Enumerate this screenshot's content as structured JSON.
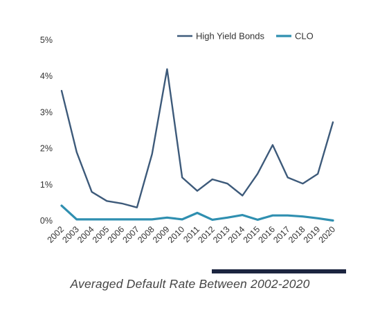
{
  "chart_data": {
    "type": "line",
    "title": "",
    "xlabel": "",
    "ylabel": "",
    "ylim": [
      0,
      5
    ],
    "y_tick_labels": [
      "0%",
      "1%",
      "2%",
      "3%",
      "4%",
      "5%"
    ],
    "categories": [
      "2002",
      "2003",
      "2004",
      "2005",
      "2006",
      "2007",
      "2008",
      "2009",
      "2010",
      "2011",
      "2012",
      "2013",
      "2014",
      "2015",
      "2016",
      "2017",
      "2018",
      "2019",
      "2020"
    ],
    "series": [
      {
        "name": "High Yield Bonds",
        "color": "#3d5a7a",
        "values": [
          3.6,
          1.9,
          0.8,
          0.55,
          0.48,
          0.37,
          1.85,
          4.2,
          1.2,
          0.83,
          1.15,
          1.03,
          0.7,
          1.3,
          2.1,
          1.2,
          1.03,
          1.3,
          2.73
        ]
      },
      {
        "name": "CLO",
        "color": "#2f8fb0",
        "values": [
          0.42,
          0.04,
          0.04,
          0.04,
          0.04,
          0.04,
          0.04,
          0.09,
          0.04,
          0.22,
          0.03,
          0.09,
          0.16,
          0.03,
          0.15,
          0.15,
          0.12,
          0.07,
          0.01
        ]
      }
    ],
    "legend_position": "top-right",
    "grid": false
  },
  "caption": {
    "text": "Averaged Default Rate Between 2002-2020",
    "bar_color": "#1c2540"
  }
}
